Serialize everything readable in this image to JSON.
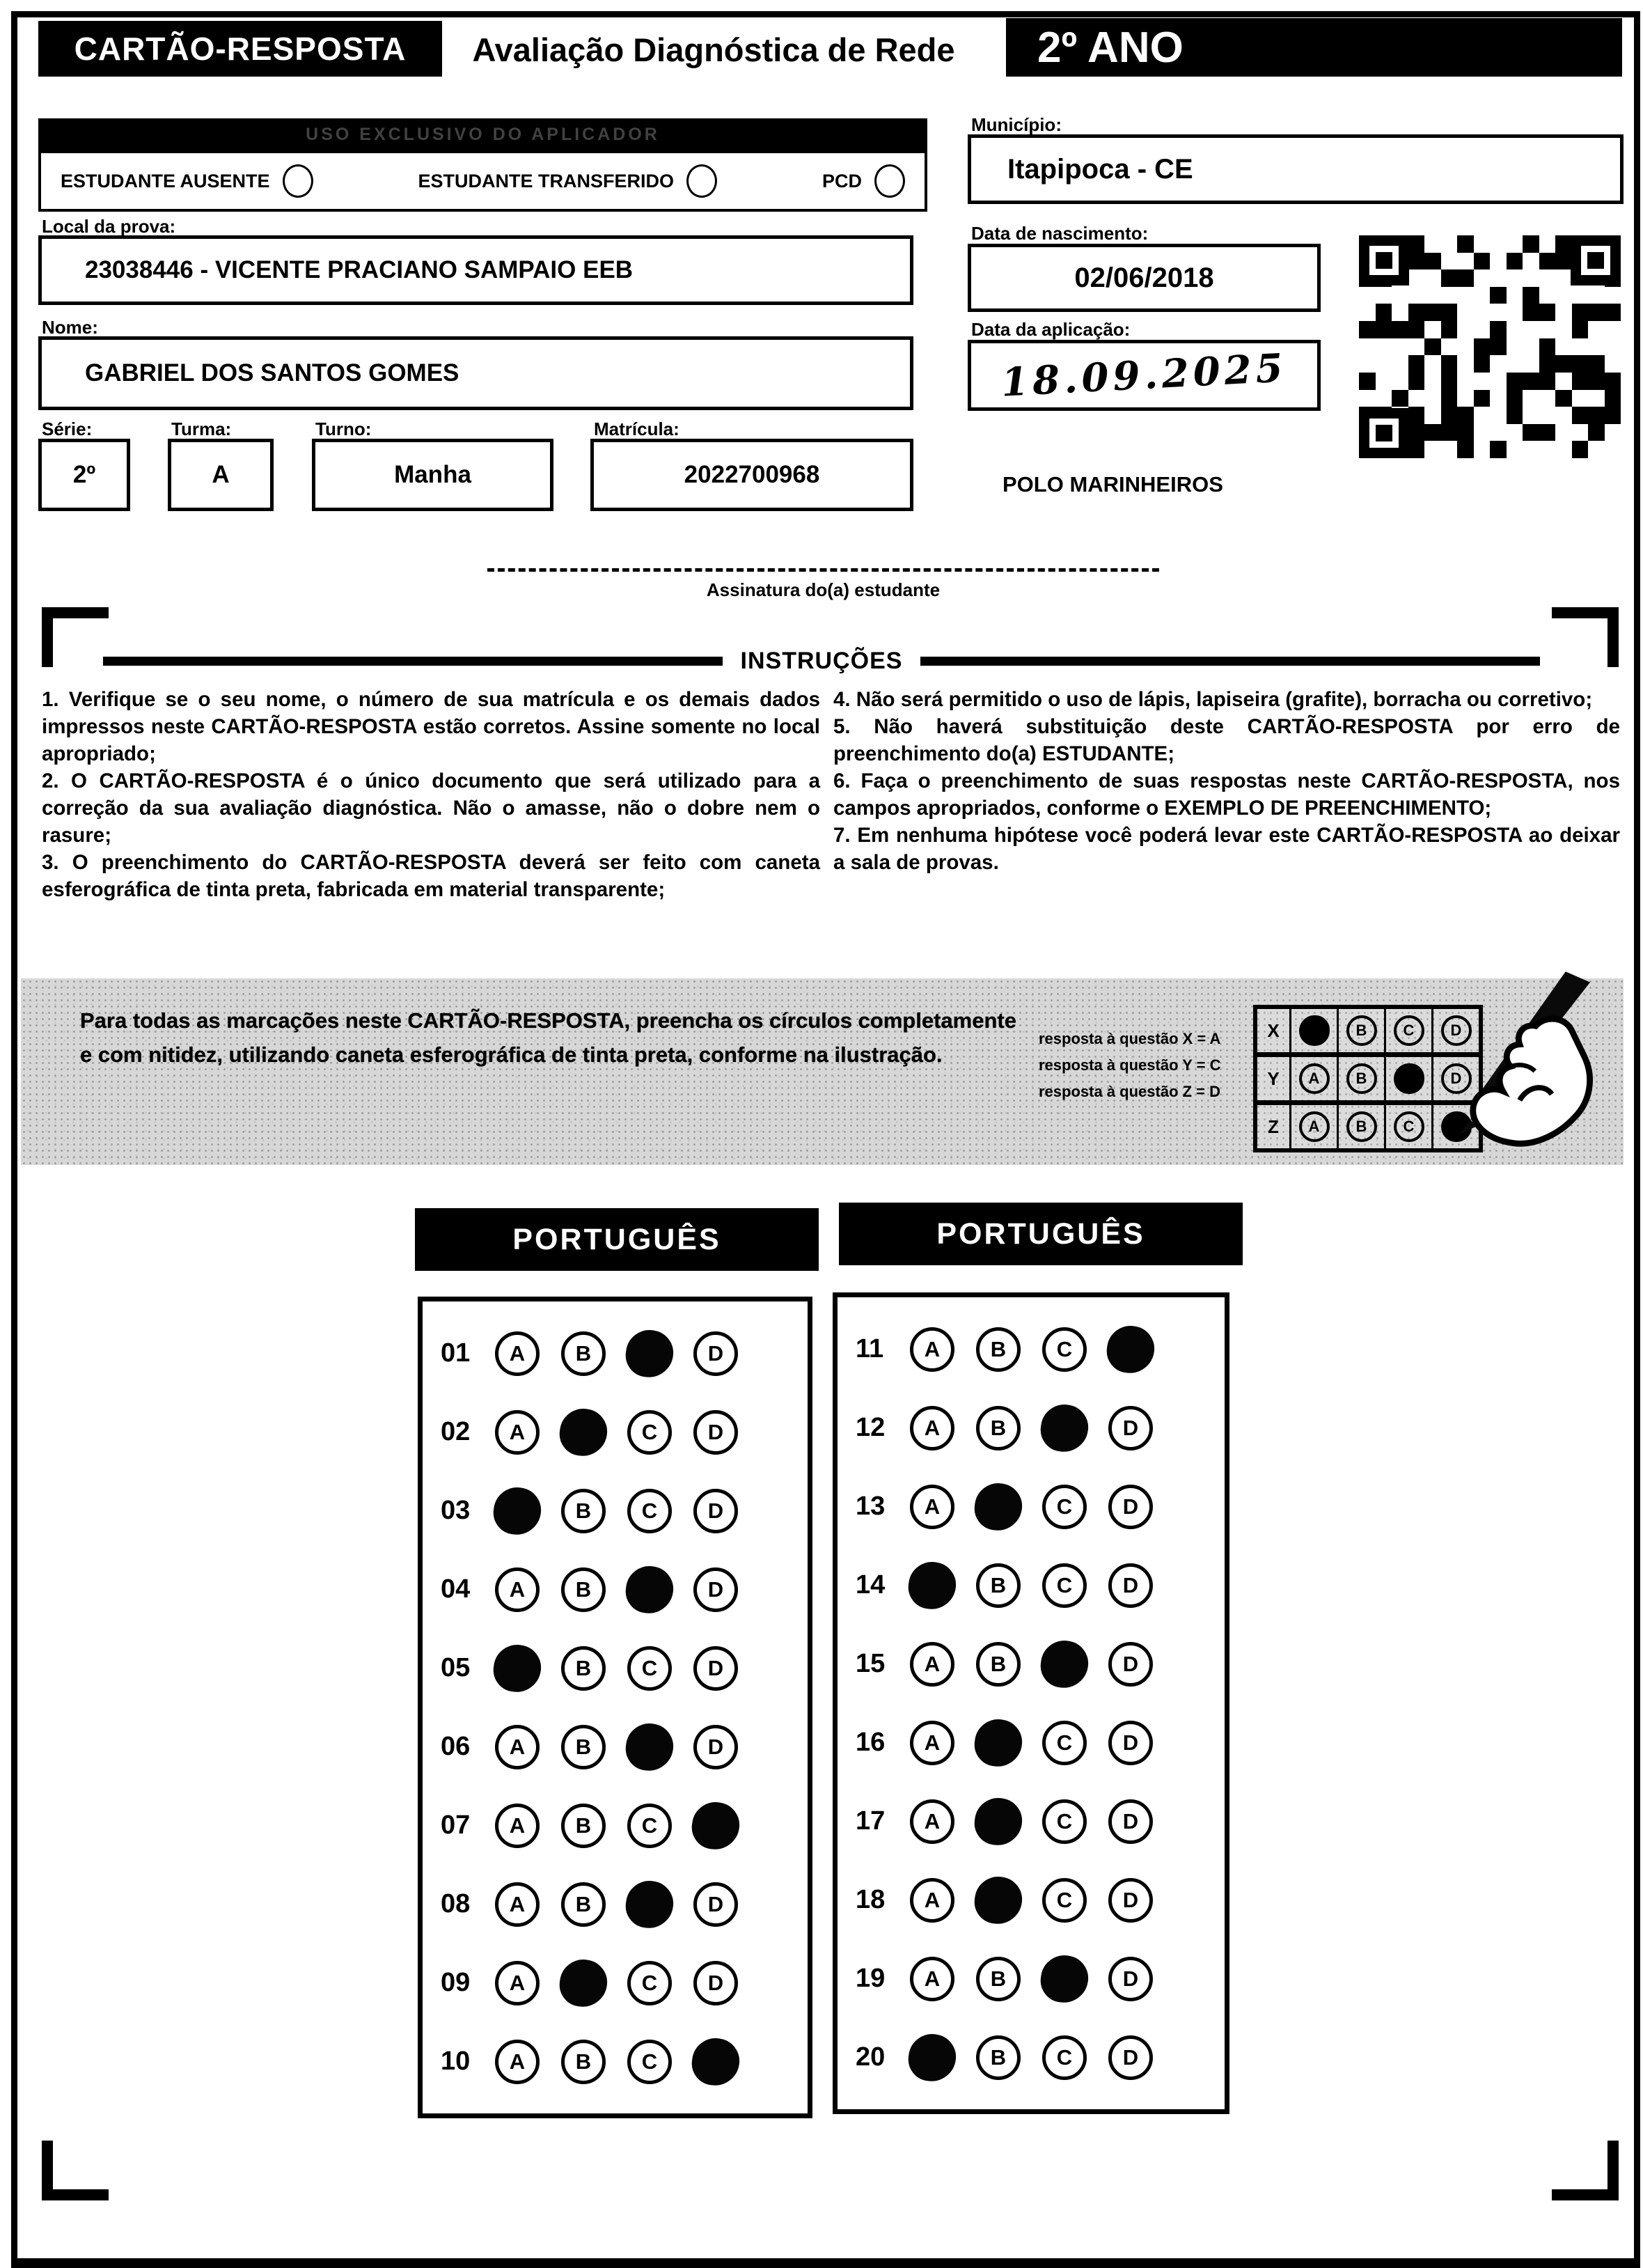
{
  "header": {
    "card_title": "CARTÃO-RESPOSTA",
    "assessment_title": "Avaliação Diagnóstica de Rede",
    "grade": "2º ANO"
  },
  "applicator": {
    "band_label": "USO EXCLUSIVO DO APLICADOR",
    "checkboxes": [
      "ESTUDANTE AUSENTE",
      "ESTUDANTE TRANSFERIDO",
      "PCD"
    ]
  },
  "student": {
    "local_label": "Local da prova:",
    "local_value": "23038446 - VICENTE PRACIANO SAMPAIO EEB",
    "name_label": "Nome:",
    "name_value": "GABRIEL DOS SANTOS GOMES",
    "serie_label": "Série:",
    "serie_value": "2º",
    "turma_label": "Turma:",
    "turma_value": "A",
    "turno_label": "Turno:",
    "turno_value": "Manha",
    "matricula_label": "Matrícula:",
    "matricula_value": "2022700968",
    "municipio_label": "Município:",
    "municipio_value": "Itapipoca - CE",
    "nascimento_label": "Data de nascimento:",
    "nascimento_value": "02/06/2018",
    "aplicacao_label": "Data da aplicação:",
    "aplicacao_value": "18.09.2025",
    "polo": "POLO MARINHEIROS"
  },
  "signature": {
    "caption": "Assinatura do(a) estudante"
  },
  "instructions": {
    "title": "INSTRUÇÕES",
    "left": [
      "1. Verifique se o seu nome, o número de sua matrícula e os demais dados impressos neste CARTÃO-RESPOSTA estão corretos. Assine somente no local apropriado;",
      "2. O CARTÃO-RESPOSTA é o único documento que será utilizado para a correção da sua avaliação diagnóstica. Não o amasse, não o dobre nem o rasure;",
      "3. O preenchimento do CARTÃO-RESPOSTA deverá ser feito com caneta esferográfica de tinta preta, fabricada em material transparente;"
    ],
    "right": [
      "4. Não será permitido o uso de lápis, lapiseira (grafite), borracha ou corretivo;",
      "5. Não haverá substituição deste CARTÃO-RESPOSTA por erro de preenchimento do(a) ESTUDANTE;",
      "6. Faça o preenchimento de suas respostas neste CARTÃO-RESPOSTA, nos campos apropriados, conforme o EXEMPLO DE PREENCHIMENTO;",
      "7. Em nenhuma hipótese você poderá levar este CARTÃO-RESPOSTA ao deixar a sala de provas."
    ]
  },
  "example": {
    "text": "Para todas as marcações neste CARTÃO-RESPOSTA, preencha os círculos completamente e com nitidez, utilizando caneta esferográfica de tinta preta, conforme na ilustração.",
    "notes": [
      "resposta à questão X = A",
      "resposta à questão Y = C",
      "resposta à questão Z = D"
    ],
    "grid_rows": [
      {
        "label": "X",
        "filled": "A"
      },
      {
        "label": "Y",
        "filled": "C"
      },
      {
        "label": "Z",
        "filled": "D"
      }
    ]
  },
  "options": [
    "A",
    "B",
    "C",
    "D"
  ],
  "answer_sections": [
    {
      "title": "PORTUGUÊS",
      "questions": [
        {
          "num": "01",
          "filled": "C"
        },
        {
          "num": "02",
          "filled": "B"
        },
        {
          "num": "03",
          "filled": "A"
        },
        {
          "num": "04",
          "filled": "C"
        },
        {
          "num": "05",
          "filled": "A"
        },
        {
          "num": "06",
          "filled": "C"
        },
        {
          "num": "07",
          "filled": "D"
        },
        {
          "num": "08",
          "filled": "C"
        },
        {
          "num": "09",
          "filled": "B"
        },
        {
          "num": "10",
          "filled": "D"
        }
      ]
    },
    {
      "title": "PORTUGUÊS",
      "questions": [
        {
          "num": "11",
          "filled": "D"
        },
        {
          "num": "12",
          "filled": "C"
        },
        {
          "num": "13",
          "filled": "B"
        },
        {
          "num": "14",
          "filled": "A"
        },
        {
          "num": "15",
          "filled": "C"
        },
        {
          "num": "16",
          "filled": "B"
        },
        {
          "num": "17",
          "filled": "B"
        },
        {
          "num": "18",
          "filled": "B"
        },
        {
          "num": "19",
          "filled": "C"
        },
        {
          "num": "20",
          "filled": "A"
        }
      ]
    }
  ]
}
